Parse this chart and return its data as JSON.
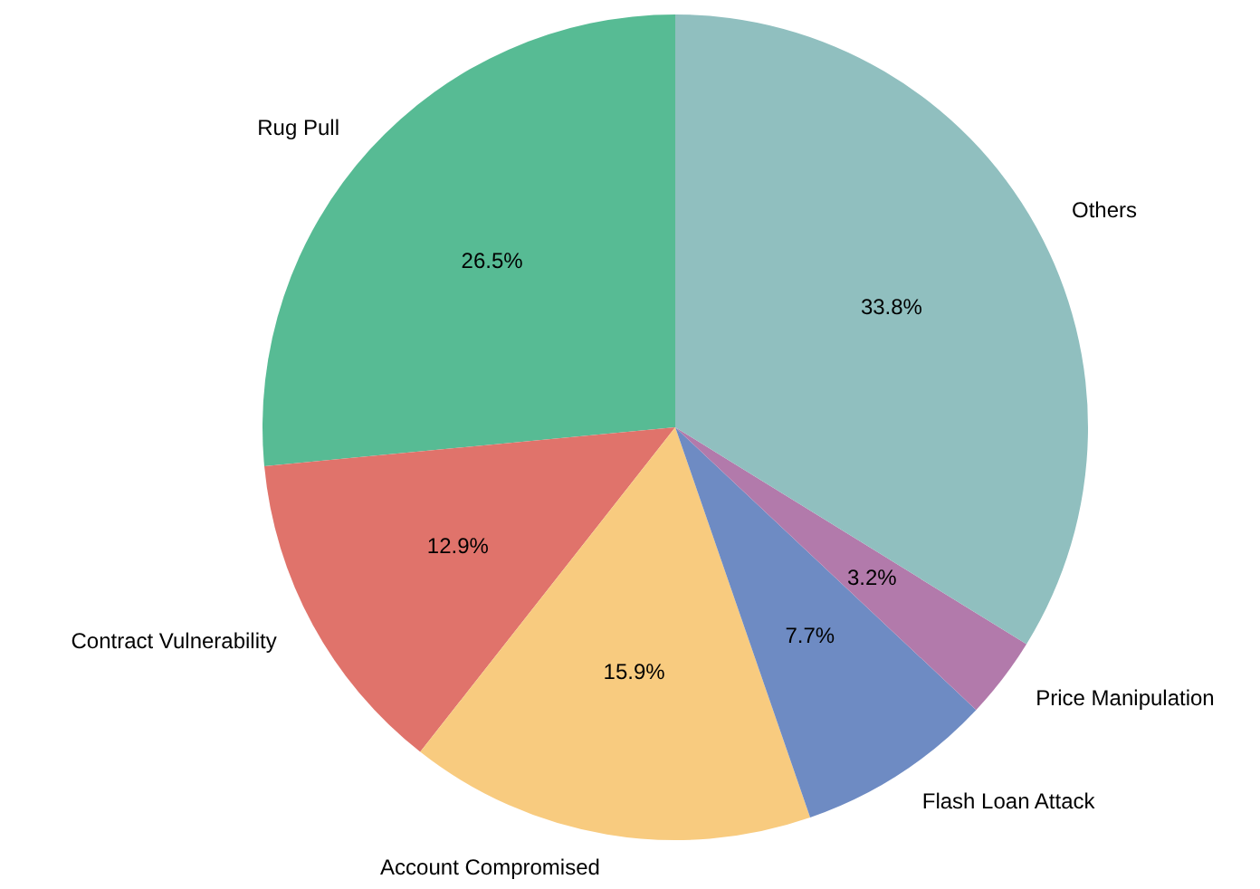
{
  "chart_data": {
    "type": "pie",
    "categories": [
      "Rug Pull",
      "Contract Vulnerability",
      "Account Compromised",
      "Flash Loan Attack",
      "Price Manipulation",
      "Others"
    ],
    "values": [
      26.5,
      12.9,
      15.9,
      7.7,
      3.2,
      33.8
    ],
    "colors": [
      "#57bb94",
      "#e0736b",
      "#f8cb7f",
      "#6e8bc3",
      "#b27aab",
      "#90bfbf"
    ],
    "value_labels": [
      "26.5%",
      "12.9%",
      "15.9%",
      "7.7%",
      "3.2%",
      "33.8%"
    ]
  }
}
